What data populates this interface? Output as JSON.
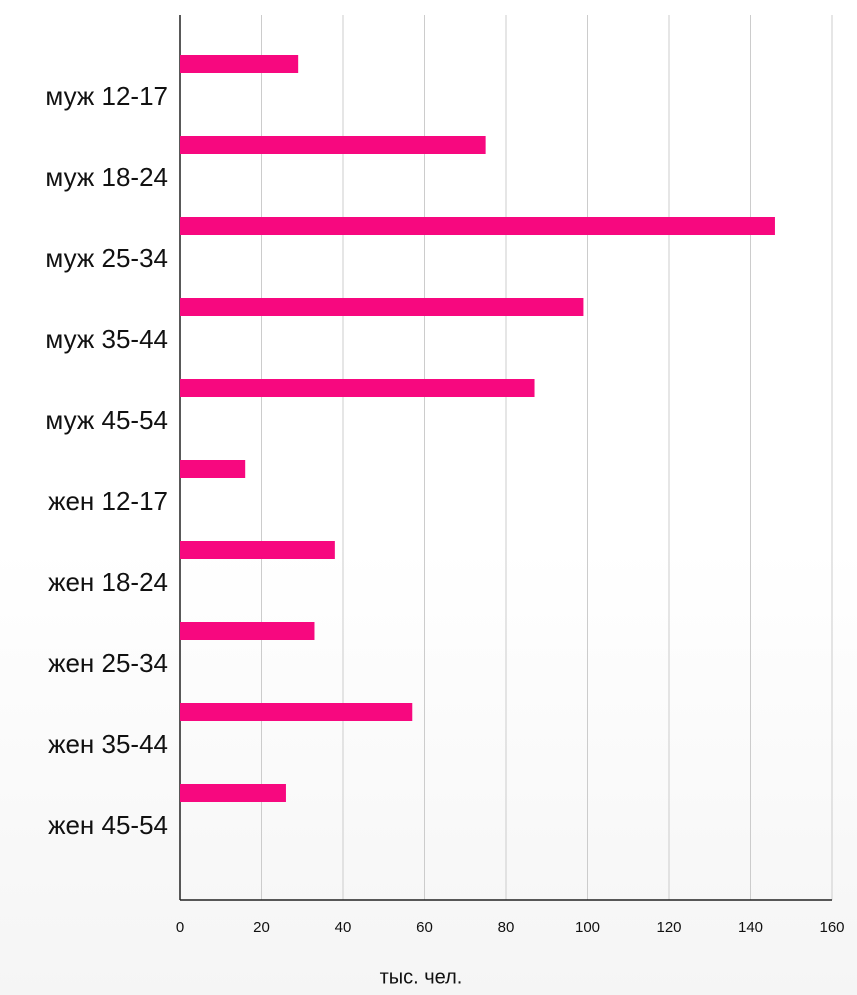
{
  "chart_data": {
    "type": "bar",
    "orientation": "horizontal",
    "categories": [
      "муж 12-17",
      "муж 18-24",
      "муж 25-34",
      "муж 35-44",
      "муж 45-54",
      "жен 12-17",
      "жен 18-24",
      "жен 25-34",
      "жен 35-44",
      "жен 45-54"
    ],
    "values": [
      29,
      75,
      146,
      99,
      87,
      16,
      38,
      33,
      57,
      26
    ],
    "color": "#f7087f",
    "xlabel": "тыс. чел.",
    "xlim": [
      0,
      160
    ],
    "xticks": [
      0,
      20,
      40,
      60,
      80,
      100,
      120,
      140,
      160
    ],
    "grid": true
  }
}
